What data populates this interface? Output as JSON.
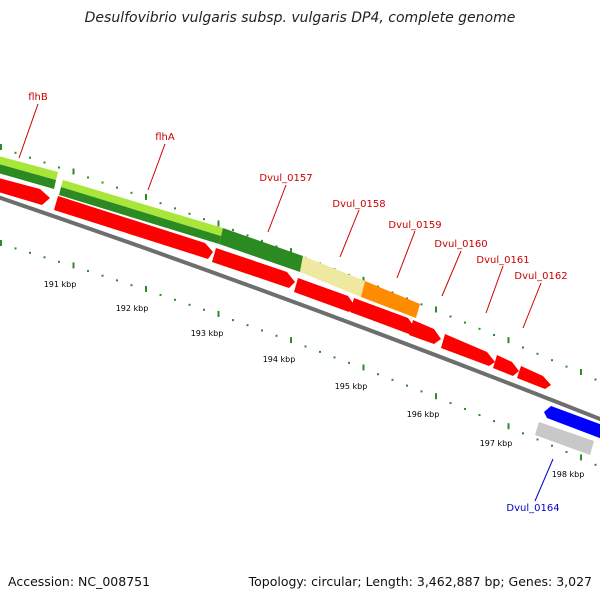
{
  "title": "Desulfovibrio vulgaris subsp. vulgaris DP4, complete genome",
  "footer": {
    "accession": "Accession: NC_008751",
    "topology": "Topology: circular; Length: 3,462,887 bp; Genes: 3,027"
  },
  "colors": {
    "red": "#ff0000",
    "light_green": "#a8e63a",
    "dark_green": "#2b8a22",
    "pale_yellow": "#efe8a0",
    "orange": "#ff8c00",
    "blue": "#0000ff",
    "gray": "#c8c8c8",
    "label_red": "#cc0000",
    "label_blue": "#0000cc",
    "tick_green": "#2c8c2c",
    "backbone": "#808080"
  },
  "gene_labels": [
    {
      "id": "flhB",
      "text": "flhB",
      "color": "label_red"
    },
    {
      "id": "flhA",
      "text": "flhA",
      "color": "label_red"
    },
    {
      "id": "dvul-0157",
      "text": "Dvul_0157",
      "color": "label_red"
    },
    {
      "id": "dvul-0158",
      "text": "Dvul_0158",
      "color": "label_red"
    },
    {
      "id": "dvul-0159",
      "text": "Dvul_0159",
      "color": "label_red"
    },
    {
      "id": "dvul-0160",
      "text": "Dvul_0160",
      "color": "label_red"
    },
    {
      "id": "dvul-0161",
      "text": "Dvul_0161",
      "color": "label_red"
    },
    {
      "id": "dvul-0162",
      "text": "Dvul_0162",
      "color": "label_red"
    },
    {
      "id": "dvul-0164",
      "text": "Dvul_0164",
      "color": "label_blue"
    }
  ],
  "kbp_labels": [
    "191 kbp",
    "192 kbp",
    "193 kbp",
    "194 kbp",
    "195 kbp",
    "196 kbp",
    "197 kbp",
    "198 kbp"
  ]
}
